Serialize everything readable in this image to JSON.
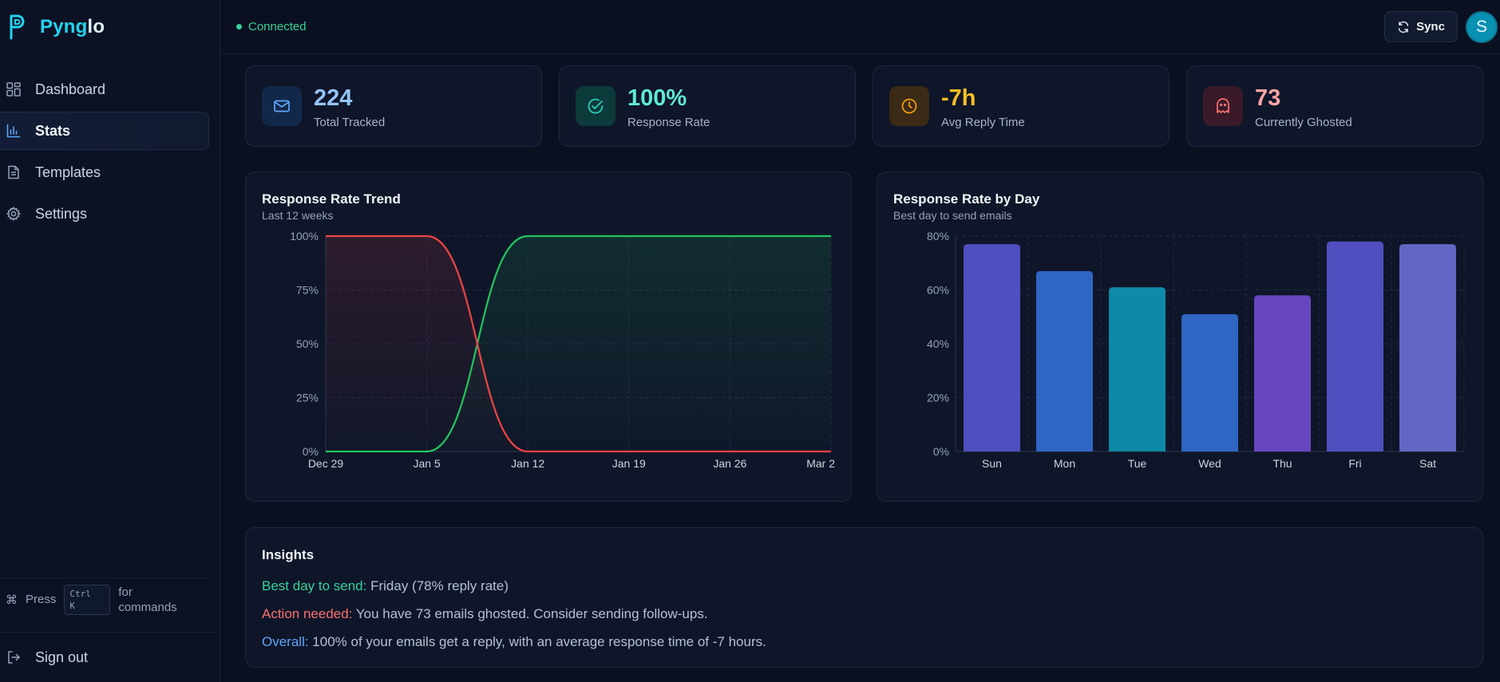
{
  "app": {
    "name_main": "Pyng",
    "name_accent": "lo"
  },
  "sidebar": {
    "items": [
      {
        "label": "Dashboard",
        "icon": "grid-icon"
      },
      {
        "label": "Stats",
        "icon": "bar-chart-icon",
        "active": true
      },
      {
        "label": "Templates",
        "icon": "file-icon"
      },
      {
        "label": "Settings",
        "icon": "gear-icon"
      }
    ],
    "cmd": {
      "press": "Press",
      "key1": "Ctrl",
      "key2": "K",
      "suffix": "for commands"
    },
    "signout": "Sign out"
  },
  "topbar": {
    "status": "Connected",
    "sync_label": "Sync",
    "avatar_initial": "S"
  },
  "stats": [
    {
      "value": "224",
      "label": "Total Tracked",
      "icon": "mail-icon",
      "color": "#93c5fd",
      "bg": "#12284a",
      "icon_color": "#60a5fa"
    },
    {
      "value": "100%",
      "label": "Response Rate",
      "icon": "check-circle-icon",
      "color": "#5eead4",
      "bg": "#0d3a3a",
      "icon_color": "#2dd4bf"
    },
    {
      "value": "-7h",
      "label": "Avg Reply Time",
      "icon": "clock-icon",
      "color": "#fbbf24",
      "bg": "#3a2a16",
      "icon_color": "#f59e0b"
    },
    {
      "value": "73",
      "label": "Currently Ghosted",
      "icon": "ghost-icon",
      "color": "#fca5a5",
      "bg": "#3a1a28",
      "icon_color": "#f87171"
    }
  ],
  "trend": {
    "title": "Response Rate Trend",
    "subtitle": "Last 12 weeks"
  },
  "byday": {
    "title": "Response Rate by Day",
    "subtitle": "Best day to send emails"
  },
  "chart_data": [
    {
      "type": "line",
      "title": "Response Rate Trend",
      "subtitle": "Last 12 weeks",
      "x": [
        "Dec 29",
        "Jan 5",
        "Jan 12",
        "Jan 19",
        "Jan 26",
        "Mar 2"
      ],
      "x_ticks": [
        "Dec 29",
        "Jan 5",
        "Jan 12",
        "Jan 19",
        "Jan 26",
        "Mar 2"
      ],
      "y_ticks": [
        "0%",
        "25%",
        "50%",
        "75%",
        "100%"
      ],
      "ylim": [
        0,
        100
      ],
      "grid": true,
      "series": [
        {
          "values": [
            0,
            0,
            100,
            100,
            100,
            100
          ],
          "color": "#22c55e"
        },
        {
          "values": [
            100,
            100,
            0,
            0,
            0,
            0
          ],
          "color": "#ef4444"
        }
      ]
    },
    {
      "type": "bar",
      "title": "Response Rate by Day",
      "subtitle": "Best day to send emails",
      "categories": [
        "Sun",
        "Mon",
        "Tue",
        "Wed",
        "Thu",
        "Fri",
        "Sat"
      ],
      "values": [
        77,
        67,
        61,
        51,
        58,
        78,
        77
      ],
      "colors": [
        "#4f4fbf",
        "#2f66c4",
        "#0e8aa6",
        "#2f66c4",
        "#6846c0",
        "#4f4fbf",
        "#6366c4"
      ],
      "y_ticks": [
        "0%",
        "20%",
        "40%",
        "60%",
        "80%"
      ],
      "ylim": [
        0,
        80
      ],
      "grid": true
    }
  ],
  "insights": {
    "title": "Insights",
    "items": [
      {
        "label": "Best day to send:",
        "text": " Friday (78% reply rate)",
        "color": "#34d399"
      },
      {
        "label": "Action needed:",
        "text": " You have 73 emails ghosted. Consider sending follow-ups.",
        "color": "#f87171"
      },
      {
        "label": "Overall:",
        "text": " 100% of your emails get a reply, with an average response time of -7 hours.",
        "color": "#60a5fa"
      }
    ]
  }
}
